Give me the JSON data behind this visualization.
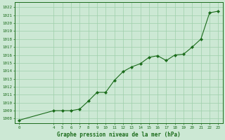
{
  "x": [
    0,
    4,
    5,
    6,
    7,
    8,
    9,
    10,
    11,
    12,
    13,
    14,
    15,
    16,
    17,
    18,
    19,
    20,
    21,
    22,
    23
  ],
  "y": [
    1007.8,
    1009.0,
    1009.0,
    1009.0,
    1009.2,
    1010.2,
    1011.3,
    1011.3,
    1012.8,
    1013.9,
    1014.5,
    1014.9,
    1015.7,
    1015.9,
    1015.3,
    1016.0,
    1016.1,
    1017.0,
    1018.0,
    1021.3,
    1021.5
  ],
  "line_color": "#1a6b1a",
  "marker_color": "#1a6b1a",
  "bg_color": "#cce8d4",
  "grid_color": "#9ecfaa",
  "xlabel": "Graphe pression niveau de la mer (hPa)",
  "ytick_min": 1008,
  "ytick_max": 1022,
  "xticks": [
    0,
    4,
    5,
    6,
    7,
    8,
    9,
    10,
    11,
    12,
    13,
    14,
    15,
    16,
    17,
    18,
    19,
    20,
    21,
    22,
    23
  ],
  "ylim": [
    1007.4,
    1022.6
  ],
  "xlim": [
    -0.5,
    23.5
  ],
  "figsize": [
    3.2,
    2.0
  ],
  "dpi": 100
}
